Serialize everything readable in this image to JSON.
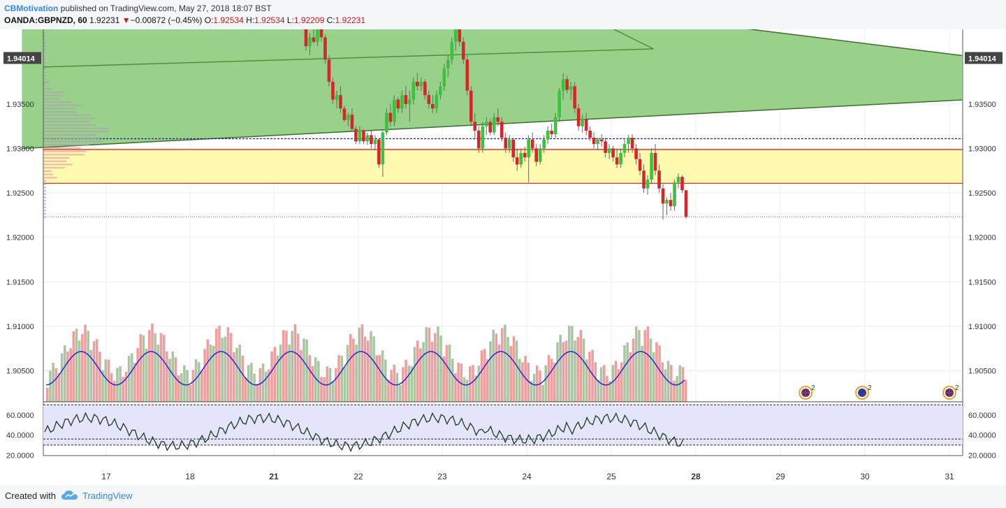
{
  "header": {
    "author": "CBMotivation",
    "published_text": "published on TradingView.com, May 27, 2018 18:07 BST",
    "symbol": "OANDA:GBPNZD, 60",
    "last": "1.92231",
    "change_arrow": "▼",
    "change": "−0.00872 (−0.45%)",
    "o_label": "O:",
    "o_value": "1.92534",
    "h_label": "H:",
    "h_value": "1.92534",
    "l_label": "L:",
    "l_value": "1.92209",
    "c_label": "C:",
    "c_value": "1.92231"
  },
  "footer": {
    "created_with": "Created with",
    "brand": "TradingView"
  },
  "colors": {
    "up": "#3cc23c",
    "down": "#d6262a",
    "channel_fill": "#8fce80",
    "zone_fill": "#fffab0",
    "rsi_band": "#e4e4fb",
    "volume_up": "#a9c6a2",
    "volume_down": "#ef9d9f",
    "volume_ma": "#1e1ed6",
    "rsi_line": "#1e3a1e",
    "blue_level": "#1a1aa0",
    "red_level": "#d01818"
  },
  "chart_data": {
    "type": "candlestick",
    "symbol": "OANDA:GBPNZD",
    "timeframe": "60",
    "x_ticks": [
      "17",
      "18",
      "21",
      "22",
      "23",
      "24",
      "25",
      "28",
      "29",
      "30",
      "31"
    ],
    "x_ticks_bold": [
      "21",
      "28"
    ],
    "y_ticks": [
      "1.93500",
      "1.93000",
      "1.92500",
      "1.92000",
      "1.91500",
      "1.91000",
      "1.90500"
    ],
    "y_range": [
      1.9015,
      1.9434
    ],
    "current_price_label": "1.94014",
    "current_price": 1.94014,
    "levels": {
      "blue_dotted": 1.9311,
      "red_top": 1.92988,
      "red_bottom": 1.92608,
      "last_dotted": 1.92231
    },
    "channel": {
      "lower_start": [
        16.0,
        1.93
      ],
      "lower_end": [
        31.15,
        1.93546
      ],
      "upper_start": [
        16.0,
        1.9536
      ],
      "upper_end": [
        31.15,
        1.94045
      ]
    },
    "ma_line": [
      [
        24.4,
        1.9464
      ],
      [
        25.5,
        1.9412
      ],
      [
        26.6,
        1.93916
      ]
    ],
    "candles_ohlc": [
      [
        1.9445,
        1.9448,
        1.941,
        1.9415
      ],
      [
        1.9415,
        1.943,
        1.9405,
        1.9425
      ],
      [
        1.9425,
        1.944,
        1.9418,
        1.942
      ],
      [
        1.942,
        1.9445,
        1.9415,
        1.944
      ],
      [
        1.944,
        1.945,
        1.942,
        1.9425
      ],
      [
        1.9425,
        1.9428,
        1.9395,
        1.94
      ],
      [
        1.94,
        1.9405,
        1.937,
        1.9375
      ],
      [
        1.9375,
        1.938,
        1.935,
        1.9355
      ],
      [
        1.9355,
        1.9365,
        1.9345,
        1.936
      ],
      [
        1.936,
        1.937,
        1.934,
        1.9345
      ],
      [
        1.9345,
        1.9348,
        1.933,
        1.9332
      ],
      [
        1.9332,
        1.934,
        1.9325,
        1.9338
      ],
      [
        1.9338,
        1.9345,
        1.932,
        1.9322
      ],
      [
        1.9322,
        1.9325,
        1.9305,
        1.9308
      ],
      [
        1.9308,
        1.9325,
        1.9305,
        1.932
      ],
      [
        1.932,
        1.9322,
        1.9305,
        1.9308
      ],
      [
        1.9308,
        1.9318,
        1.9304,
        1.9315
      ],
      [
        1.9315,
        1.932,
        1.93,
        1.9305
      ],
      [
        1.9305,
        1.9315,
        1.9298,
        1.931
      ],
      [
        1.931,
        1.9312,
        1.9278,
        1.9282
      ],
      [
        1.9282,
        1.932,
        1.9268,
        1.9318
      ],
      [
        1.9318,
        1.9345,
        1.9315,
        1.934
      ],
      [
        1.934,
        1.935,
        1.9325,
        1.933
      ],
      [
        1.933,
        1.936,
        1.9325,
        1.9355
      ],
      [
        1.9355,
        1.9358,
        1.934,
        1.9345
      ],
      [
        1.9345,
        1.9365,
        1.934,
        1.936
      ],
      [
        1.936,
        1.937,
        1.9345,
        1.935
      ],
      [
        1.935,
        1.9365,
        1.933,
        1.9355
      ],
      [
        1.9355,
        1.938,
        1.935,
        1.9375
      ],
      [
        1.9375,
        1.9385,
        1.9365,
        1.937
      ],
      [
        1.937,
        1.938,
        1.9365,
        1.9375
      ],
      [
        1.9375,
        1.9378,
        1.9355,
        1.936
      ],
      [
        1.936,
        1.9365,
        1.9345,
        1.935
      ],
      [
        1.935,
        1.936,
        1.934,
        1.9345
      ],
      [
        1.9345,
        1.9365,
        1.934,
        1.936
      ],
      [
        1.936,
        1.9375,
        1.9355,
        1.937
      ],
      [
        1.937,
        1.9395,
        1.9365,
        1.939
      ],
      [
        1.939,
        1.9405,
        1.938,
        1.94
      ],
      [
        1.94,
        1.9425,
        1.9395,
        1.942
      ],
      [
        1.942,
        1.9445,
        1.941,
        1.944
      ],
      [
        1.944,
        1.9448,
        1.9415,
        1.942
      ],
      [
        1.942,
        1.9425,
        1.9395,
        1.94
      ],
      [
        1.94,
        1.9405,
        1.936,
        1.9365
      ],
      [
        1.9365,
        1.937,
        1.9325,
        1.933
      ],
      [
        1.933,
        1.934,
        1.931,
        1.932
      ],
      [
        1.932,
        1.9325,
        1.9295,
        1.93
      ],
      [
        1.93,
        1.933,
        1.9295,
        1.9325
      ],
      [
        1.9325,
        1.9335,
        1.9315,
        1.933
      ],
      [
        1.933,
        1.9333,
        1.9315,
        1.9318
      ],
      [
        1.9318,
        1.934,
        1.9315,
        1.9335
      ],
      [
        1.9335,
        1.9345,
        1.9325,
        1.933
      ],
      [
        1.933,
        1.9335,
        1.9308,
        1.9312
      ],
      [
        1.9312,
        1.9318,
        1.9295,
        1.93
      ],
      [
        1.93,
        1.9315,
        1.9295,
        1.931
      ],
      [
        1.931,
        1.9312,
        1.9285,
        1.929
      ],
      [
        1.929,
        1.93,
        1.9275,
        1.9282
      ],
      [
        1.9282,
        1.93,
        1.9278,
        1.9295
      ],
      [
        1.9295,
        1.9302,
        1.9285,
        1.929
      ],
      [
        1.929,
        1.9315,
        1.9262,
        1.931
      ],
      [
        1.931,
        1.9318,
        1.9295,
        1.93
      ],
      [
        1.93,
        1.9305,
        1.928,
        1.9285
      ],
      [
        1.9285,
        1.9305,
        1.9282,
        1.93
      ],
      [
        1.93,
        1.9315,
        1.9295,
        1.931
      ],
      [
        1.931,
        1.9325,
        1.9305,
        1.932
      ],
      [
        1.932,
        1.9328,
        1.9312,
        1.9316
      ],
      [
        1.9316,
        1.934,
        1.9312,
        1.9335
      ],
      [
        1.9335,
        1.9368,
        1.933,
        1.9365
      ],
      [
        1.9365,
        1.9385,
        1.9355,
        1.9378
      ],
      [
        1.9378,
        1.9382,
        1.9362,
        1.9366
      ],
      [
        1.9366,
        1.9375,
        1.9355,
        1.937
      ],
      [
        1.937,
        1.9375,
        1.934,
        1.9345
      ],
      [
        1.9345,
        1.935,
        1.932,
        1.9325
      ],
      [
        1.9325,
        1.9338,
        1.9318,
        1.9333
      ],
      [
        1.9333,
        1.934,
        1.9315,
        1.932
      ],
      [
        1.932,
        1.9325,
        1.9308,
        1.9312
      ],
      [
        1.9312,
        1.9318,
        1.93,
        1.9305
      ],
      [
        1.9305,
        1.9312,
        1.9298,
        1.931
      ],
      [
        1.931,
        1.9316,
        1.9302,
        1.9308
      ],
      [
        1.9308,
        1.9312,
        1.929,
        1.9295
      ],
      [
        1.9295,
        1.9305,
        1.9288,
        1.93
      ],
      [
        1.93,
        1.9303,
        1.9285,
        1.929
      ],
      [
        1.929,
        1.93,
        1.9278,
        1.9282
      ],
      [
        1.9282,
        1.93,
        1.9278,
        1.9295
      ],
      [
        1.9295,
        1.931,
        1.929,
        1.9305
      ],
      [
        1.9305,
        1.9315,
        1.9295,
        1.9312
      ],
      [
        1.9312,
        1.9316,
        1.9295,
        1.93
      ],
      [
        1.93,
        1.9305,
        1.9282,
        1.9288
      ],
      [
        1.9288,
        1.9295,
        1.927,
        1.9275
      ],
      [
        1.9275,
        1.9282,
        1.925,
        1.9255
      ],
      [
        1.9255,
        1.927,
        1.9248,
        1.9265
      ],
      [
        1.9265,
        1.93,
        1.926,
        1.9295
      ],
      [
        1.9295,
        1.9305,
        1.927,
        1.9275
      ],
      [
        1.9275,
        1.9282,
        1.925,
        1.9255
      ],
      [
        1.9255,
        1.926,
        1.922,
        1.9238
      ],
      [
        1.9238,
        1.9245,
        1.9225,
        1.9242
      ],
      [
        1.9242,
        1.925,
        1.923,
        1.9235
      ],
      [
        1.9235,
        1.9265,
        1.923,
        1.9262
      ],
      [
        1.9262,
        1.9272,
        1.9255,
        1.9268
      ],
      [
        1.9268,
        1.927,
        1.925,
        1.9253
      ],
      [
        1.9253,
        1.9253,
        1.9221,
        1.9223
      ]
    ],
    "volume_ma_ticks": [],
    "event_markers": [
      {
        "day": 29.3,
        "count": "2",
        "flag": "uk"
      },
      {
        "day": 29.97,
        "count": "2",
        "flag": "nz"
      },
      {
        "day": 31.0,
        "count": "2",
        "flag": "uk"
      }
    ],
    "rsi": {
      "y_ticks": [
        "60.0000",
        "40.0000",
        "20.0000"
      ],
      "y_range": [
        19.5,
        71.0
      ],
      "overbought": 70,
      "oversold": 30,
      "mid_dotted": 36
    }
  }
}
